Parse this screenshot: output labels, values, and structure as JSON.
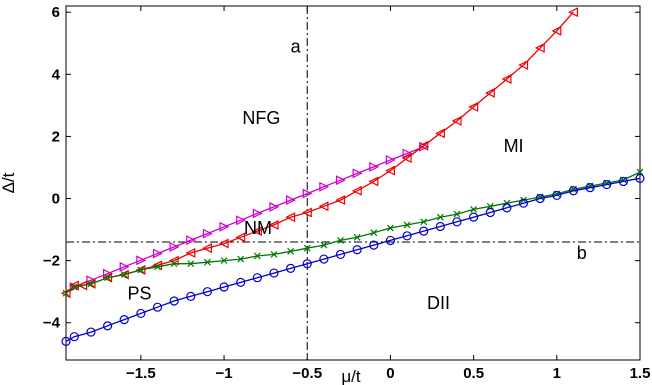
{
  "chart_data": {
    "type": "line",
    "xlabel": "μ/t",
    "ylabel": "Δ/t",
    "xlim": [
      -1.95,
      1.5
    ],
    "ylim": [
      -5.2,
      6.2
    ],
    "xticks": [
      -1.5,
      -1,
      -0.5,
      0,
      0.5,
      1,
      1.5
    ],
    "xtick_labels": [
      "−1.5",
      "−1",
      "−0.5",
      "0",
      "0.5",
      "1",
      "1.5"
    ],
    "yticks": [
      -4,
      -2,
      0,
      2,
      4,
      6
    ],
    "ytick_labels": [
      "−4",
      "−2",
      "0",
      "2",
      "4",
      "6"
    ],
    "grid": false,
    "reference_lines": [
      {
        "orientation": "vertical",
        "value": -0.5,
        "style": "dash-dot"
      },
      {
        "orientation": "horizontal",
        "value": -1.4,
        "style": "dash-dot"
      }
    ],
    "region_labels": [
      {
        "text": "a",
        "x": -0.6,
        "y": 4.7
      },
      {
        "text": "NFG",
        "x": -0.89,
        "y": 2.4
      },
      {
        "text": "MI",
        "x": 0.68,
        "y": 1.5
      },
      {
        "text": "NM",
        "x": -0.88,
        "y": -1.15
      },
      {
        "text": "b",
        "x": 1.12,
        "y": -1.95
      },
      {
        "text": "PS",
        "x": -1.58,
        "y": -3.25
      },
      {
        "text": "DII",
        "x": 0.22,
        "y": -3.55
      }
    ],
    "series": [
      {
        "color": "#cc00cc",
        "marker": "triangle-right",
        "x": [
          -1.9,
          -1.8,
          -1.7,
          -1.6,
          -1.5,
          -1.4,
          -1.3,
          -1.2,
          -1.1,
          -1.0,
          -0.9,
          -0.8,
          -0.7,
          -0.6,
          -0.5,
          -0.4,
          -0.3,
          -0.2,
          -0.1,
          0.0,
          0.1,
          0.2
        ],
        "y": [
          -2.85,
          -2.63,
          -2.42,
          -2.2,
          -1.99,
          -1.77,
          -1.56,
          -1.34,
          -1.13,
          -0.91,
          -0.7,
          -0.48,
          -0.27,
          -0.05,
          0.16,
          0.38,
          0.59,
          0.81,
          1.02,
          1.24,
          1.45,
          1.67
        ]
      },
      {
        "color": "#ee0000",
        "marker": "triangle-left",
        "x": [
          -1.95,
          -1.9,
          -1.85,
          -1.8,
          -1.7,
          -1.6,
          -1.5,
          -1.4,
          -1.3,
          -1.2,
          -1.1,
          -1.0,
          -0.9,
          -0.8,
          -0.7,
          -0.6,
          -0.5,
          -0.4,
          -0.3,
          -0.2,
          -0.1,
          0.0,
          0.1,
          0.2,
          0.3,
          0.4,
          0.5,
          0.6,
          0.7,
          0.8,
          0.9,
          1.0,
          1.1
        ],
        "y": [
          -3.05,
          -2.8,
          -2.8,
          -2.75,
          -2.55,
          -2.45,
          -2.3,
          -2.15,
          -2.0,
          -1.75,
          -1.6,
          -1.45,
          -1.25,
          -1.05,
          -0.85,
          -0.6,
          -0.45,
          -0.25,
          -0.05,
          0.25,
          0.55,
          0.9,
          1.3,
          1.7,
          2.1,
          2.5,
          2.95,
          3.4,
          3.85,
          4.3,
          4.85,
          5.4,
          6.0
        ]
      },
      {
        "color": "#007700",
        "marker": "x",
        "x": [
          -1.95,
          -1.9,
          -1.8,
          -1.7,
          -1.6,
          -1.5,
          -1.4,
          -1.3,
          -1.2,
          -1.1,
          -1.0,
          -0.9,
          -0.8,
          -0.7,
          -0.6,
          -0.5,
          -0.4,
          -0.3,
          -0.2,
          -0.1,
          0.0,
          0.1,
          0.2,
          0.3,
          0.4,
          0.5,
          0.6,
          0.7,
          0.8,
          0.9,
          1.0,
          1.1,
          1.2,
          1.3,
          1.4,
          1.5
        ],
        "y": [
          -3.05,
          -2.85,
          -2.75,
          -2.55,
          -2.45,
          -2.3,
          -2.2,
          -2.1,
          -2.1,
          -2.05,
          -2.0,
          -1.95,
          -1.85,
          -1.8,
          -1.7,
          -1.6,
          -1.5,
          -1.35,
          -1.25,
          -1.1,
          -0.95,
          -0.85,
          -0.75,
          -0.6,
          -0.5,
          -0.35,
          -0.25,
          -0.15,
          -0.05,
          0.05,
          0.15,
          0.3,
          0.4,
          0.5,
          0.6,
          0.85
        ]
      },
      {
        "color": "#0000cc",
        "marker": "circle",
        "x": [
          -1.95,
          -1.9,
          -1.8,
          -1.7,
          -1.6,
          -1.5,
          -1.4,
          -1.3,
          -1.2,
          -1.1,
          -1.0,
          -0.9,
          -0.8,
          -0.7,
          -0.6,
          -0.5,
          -0.4,
          -0.3,
          -0.2,
          -0.1,
          0.0,
          0.1,
          0.2,
          0.3,
          0.4,
          0.5,
          0.6,
          0.7,
          0.8,
          0.9,
          1.0,
          1.1,
          1.2,
          1.3,
          1.4,
          1.5
        ],
        "y": [
          -4.6,
          -4.45,
          -4.3,
          -4.1,
          -3.9,
          -3.7,
          -3.5,
          -3.3,
          -3.15,
          -3.0,
          -2.85,
          -2.7,
          -2.55,
          -2.4,
          -2.25,
          -2.1,
          -1.95,
          -1.8,
          -1.65,
          -1.5,
          -1.35,
          -1.2,
          -1.05,
          -0.9,
          -0.75,
          -0.6,
          -0.45,
          -0.3,
          -0.15,
          0.0,
          0.1,
          0.25,
          0.35,
          0.45,
          0.55,
          0.65
        ]
      }
    ]
  }
}
